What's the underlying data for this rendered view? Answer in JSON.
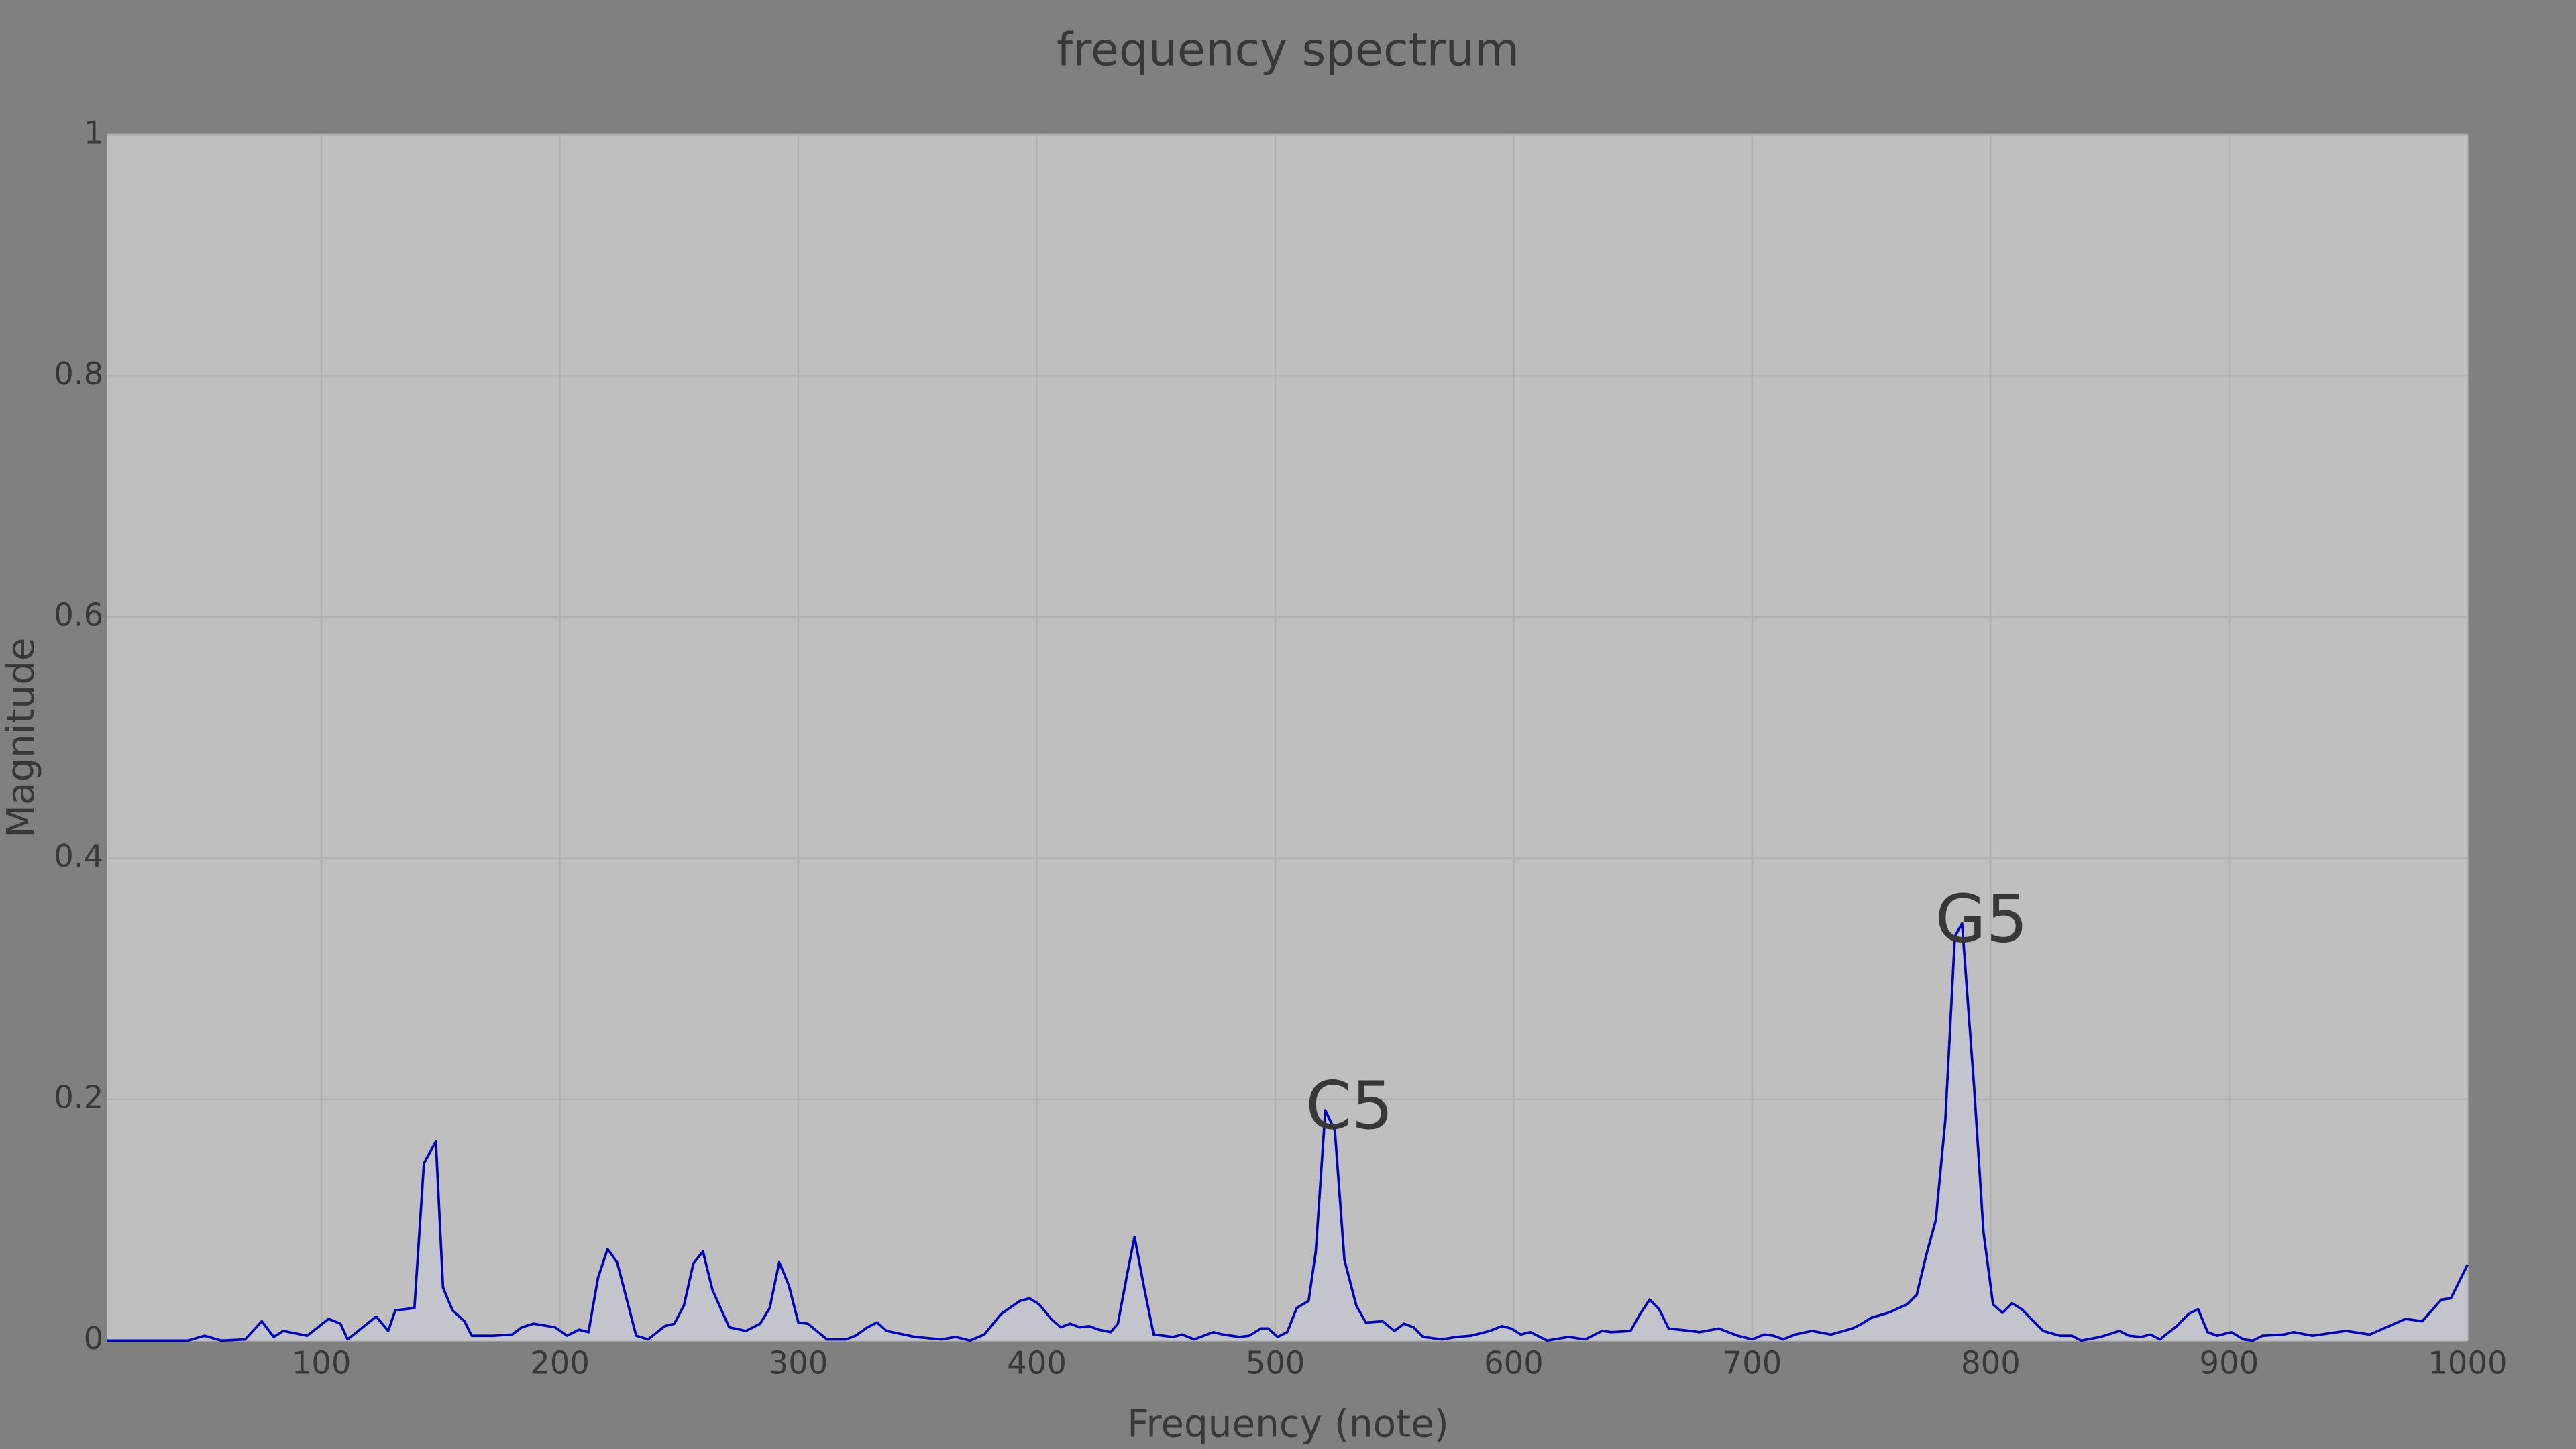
{
  "chart_data": {
    "type": "line",
    "title": "frequency spectrum",
    "x_label": "Frequency (note)",
    "y_label": "Magnitude",
    "xlim": [
      10,
      1000
    ],
    "ylim": [
      0,
      1
    ],
    "xticks": [
      100,
      200,
      300,
      400,
      500,
      600,
      700,
      800,
      900,
      1000
    ],
    "yticks": [
      0,
      0.2,
      0.4,
      0.6,
      0.8,
      1
    ],
    "grid": true,
    "color": "#0000c0",
    "fill_color": "#c3c5cc",
    "x": [
      10,
      44,
      51,
      58,
      68,
      75,
      80,
      84,
      94,
      103,
      108,
      111,
      123,
      128,
      131,
      139,
      143,
      148,
      151,
      155,
      160,
      163,
      172,
      180,
      184,
      189,
      198,
      203,
      208,
      212,
      216,
      220,
      224,
      232,
      237,
      244,
      248,
      252,
      256,
      260,
      264,
      271,
      278,
      284,
      288,
      292,
      296,
      300,
      304,
      312,
      320,
      324,
      329,
      333,
      337,
      349,
      360,
      366,
      372,
      378,
      385,
      393,
      397,
      401,
      406,
      410,
      414,
      418,
      422,
      426,
      431,
      434,
      438,
      441,
      445,
      449,
      457,
      461,
      466,
      474,
      478,
      485,
      489,
      494,
      497,
      501,
      505,
      509,
      514,
      517,
      521,
      525,
      529,
      534,
      538,
      545,
      550,
      554,
      558,
      562,
      570,
      576,
      582,
      590,
      595,
      599,
      603,
      607,
      614,
      623,
      630,
      637,
      641,
      649,
      653,
      657,
      661,
      665,
      674,
      678,
      686,
      694,
      700,
      705,
      709,
      713,
      718,
      725,
      733,
      742,
      746,
      750,
      757,
      765,
      769,
      773,
      777,
      781,
      785,
      788,
      793,
      797,
      801,
      805,
      809,
      813,
      822,
      829,
      834,
      838,
      846,
      854,
      858,
      863,
      867,
      871,
      878,
      883,
      887,
      891,
      895,
      901,
      906,
      910,
      914,
      923,
      927,
      935,
      949,
      959,
      967,
      974,
      981,
      989,
      993,
      1000
    ],
    "values": [
      0,
      0,
      0.004,
      0,
      0.001,
      0.016,
      0.003,
      0.008,
      0.004,
      0.018,
      0.014,
      0.001,
      0.02,
      0.008,
      0.025,
      0.027,
      0.147,
      0.165,
      0.044,
      0.025,
      0.016,
      0.004,
      0.004,
      0.005,
      0.011,
      0.014,
      0.011,
      0.004,
      0.009,
      0.007,
      0.052,
      0.076,
      0.065,
      0.004,
      0.001,
      0.012,
      0.014,
      0.029,
      0.064,
      0.074,
      0.042,
      0.011,
      0.008,
      0.014,
      0.027,
      0.065,
      0.046,
      0.015,
      0.014,
      0.001,
      0.001,
      0.004,
      0.011,
      0.015,
      0.008,
      0.003,
      0.001,
      0.003,
      0,
      0.005,
      0.022,
      0.033,
      0.035,
      0.03,
      0.018,
      0.011,
      0.014,
      0.011,
      0.012,
      0.009,
      0.007,
      0.014,
      0.056,
      0.086,
      0.044,
      0.005,
      0.003,
      0.005,
      0.001,
      0.007,
      0.005,
      0.003,
      0.004,
      0.01,
      0.01,
      0.003,
      0.007,
      0.027,
      0.033,
      0.074,
      0.191,
      0.174,
      0.067,
      0.029,
      0.015,
      0.016,
      0.008,
      0.014,
      0.011,
      0.003,
      0.001,
      0.003,
      0.004,
      0.008,
      0.012,
      0.01,
      0.005,
      0.007,
      0,
      0.003,
      0.001,
      0.008,
      0.007,
      0.008,
      0.022,
      0.034,
      0.026,
      0.01,
      0.008,
      0.007,
      0.01,
      0.004,
      0.001,
      0.005,
      0.004,
      0.001,
      0.005,
      0.008,
      0.005,
      0.01,
      0.014,
      0.019,
      0.023,
      0.03,
      0.038,
      0.071,
      0.1,
      0.183,
      0.335,
      0.346,
      0.212,
      0.09,
      0.03,
      0.023,
      0.031,
      0.026,
      0.008,
      0.004,
      0.004,
      0,
      0.003,
      0.008,
      0.004,
      0.003,
      0.005,
      0.001,
      0.012,
      0.022,
      0.026,
      0.007,
      0.004,
      0.007,
      0.001,
      0,
      0.004,
      0.005,
      0.007,
      0.004,
      0.008,
      0.005,
      0.012,
      0.018,
      0.016,
      0.034,
      0.035,
      0.063
    ],
    "annotations": [
      {
        "text": "C5",
        "x": 521,
        "y": 0.191
      },
      {
        "text": "G5",
        "x": 785,
        "y": 0.346
      }
    ]
  }
}
